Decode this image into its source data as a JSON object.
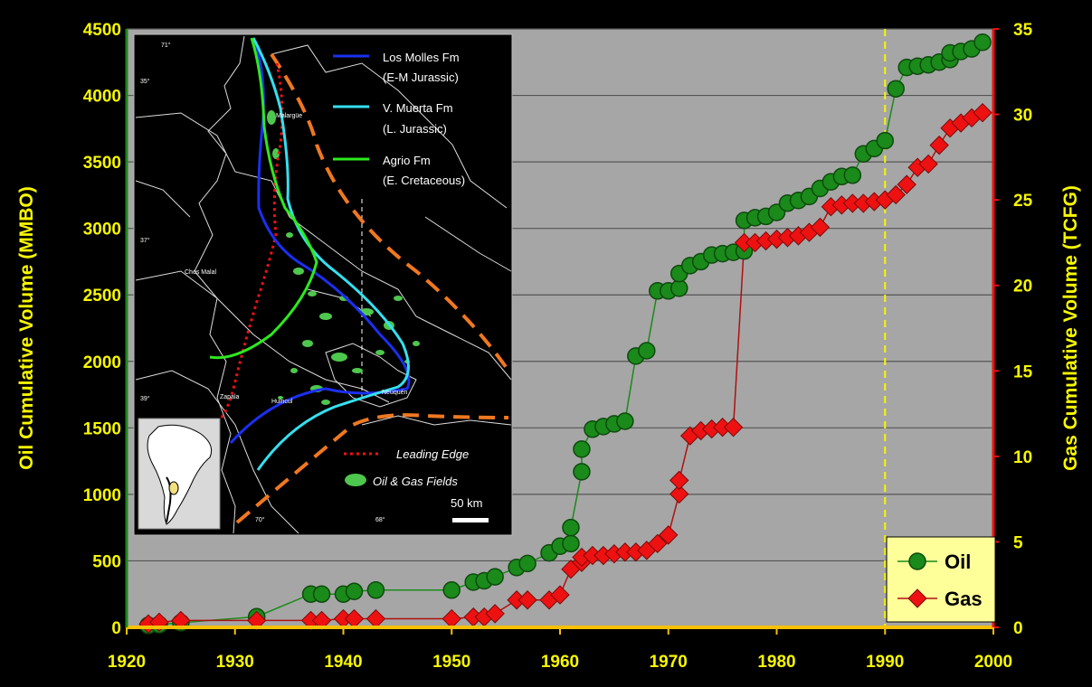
{
  "chart_data": {
    "type": "scatter",
    "title": "",
    "xlabel": "",
    "y_left_label": "Oil Cumulative Volume (MMBO)",
    "y_right_label": "Gas Cumulative Volume (TCFG)",
    "xlim": [
      1920,
      2000
    ],
    "ylim_left": [
      0,
      4500
    ],
    "ylim_right": [
      0,
      35
    ],
    "x_ticks": [
      "1920",
      "1930",
      "1940",
      "1950",
      "1960",
      "1970",
      "1980",
      "1990",
      "2000"
    ],
    "y_left_ticks": [
      "0",
      "500",
      "1000",
      "1500",
      "2000",
      "2500",
      "3000",
      "3500",
      "4000",
      "4500"
    ],
    "y_right_ticks": [
      "0",
      "5",
      "10",
      "15",
      "20",
      "25",
      "30",
      "35"
    ],
    "vertical_marker_x": 1990,
    "legend_position": "bottom-right",
    "series": [
      {
        "name": "Oil",
        "axis": "left",
        "color": "#1a8a1a",
        "marker": "circle",
        "points": [
          [
            1922,
            15
          ],
          [
            1923,
            20
          ],
          [
            1925,
            35
          ],
          [
            1932,
            80
          ],
          [
            1937,
            250
          ],
          [
            1938,
            250
          ],
          [
            1940,
            250
          ],
          [
            1941,
            270
          ],
          [
            1943,
            280
          ],
          [
            1950,
            280
          ],
          [
            1952,
            340
          ],
          [
            1953,
            350
          ],
          [
            1954,
            380
          ],
          [
            1956,
            450
          ],
          [
            1957,
            480
          ],
          [
            1959,
            560
          ],
          [
            1960,
            610
          ],
          [
            1961,
            630
          ],
          [
            1961,
            750
          ],
          [
            1962,
            1170
          ],
          [
            1962,
            1340
          ],
          [
            1963,
            1490
          ],
          [
            1964,
            1510
          ],
          [
            1965,
            1530
          ],
          [
            1966,
            1550
          ],
          [
            1967,
            2040
          ],
          [
            1968,
            2080
          ],
          [
            1969,
            2530
          ],
          [
            1970,
            2530
          ],
          [
            1971,
            2550
          ],
          [
            1971,
            2660
          ],
          [
            1972,
            2720
          ],
          [
            1973,
            2750
          ],
          [
            1974,
            2800
          ],
          [
            1975,
            2810
          ],
          [
            1976,
            2820
          ],
          [
            1977,
            2830
          ],
          [
            1977,
            3060
          ],
          [
            1978,
            3080
          ],
          [
            1979,
            3090
          ],
          [
            1980,
            3120
          ],
          [
            1981,
            3190
          ],
          [
            1982,
            3210
          ],
          [
            1983,
            3240
          ],
          [
            1984,
            3300
          ],
          [
            1985,
            3350
          ],
          [
            1986,
            3390
          ],
          [
            1987,
            3400
          ],
          [
            1988,
            3560
          ],
          [
            1989,
            3600
          ],
          [
            1990,
            3660
          ],
          [
            1991,
            4050
          ],
          [
            1992,
            4210
          ],
          [
            1993,
            4220
          ],
          [
            1994,
            4230
          ],
          [
            1995,
            4250
          ],
          [
            1996,
            4270
          ],
          [
            1996,
            4320
          ],
          [
            1997,
            4330
          ],
          [
            1998,
            4350
          ],
          [
            1999,
            4400
          ]
        ]
      },
      {
        "name": "Gas",
        "axis": "right",
        "color": "#ee1111",
        "marker": "diamond",
        "points": [
          [
            1922,
            0.2
          ],
          [
            1923,
            0.3
          ],
          [
            1925,
            0.4
          ],
          [
            1932,
            0.4
          ],
          [
            1937,
            0.4
          ],
          [
            1938,
            0.4
          ],
          [
            1940,
            0.5
          ],
          [
            1941,
            0.5
          ],
          [
            1943,
            0.5
          ],
          [
            1950,
            0.5
          ],
          [
            1952,
            0.6
          ],
          [
            1953,
            0.6
          ],
          [
            1954,
            0.8
          ],
          [
            1956,
            1.6
          ],
          [
            1957,
            1.6
          ],
          [
            1959,
            1.6
          ],
          [
            1960,
            1.9
          ],
          [
            1961,
            3.4
          ],
          [
            1962,
            3.8
          ],
          [
            1962,
            4.1
          ],
          [
            1963,
            4.2
          ],
          [
            1964,
            4.2
          ],
          [
            1965,
            4.3
          ],
          [
            1966,
            4.4
          ],
          [
            1967,
            4.4
          ],
          [
            1968,
            4.5
          ],
          [
            1969,
            4.9
          ],
          [
            1970,
            5.4
          ],
          [
            1971,
            7.8
          ],
          [
            1971,
            8.6
          ],
          [
            1972,
            11.2
          ],
          [
            1973,
            11.5
          ],
          [
            1974,
            11.6
          ],
          [
            1975,
            11.7
          ],
          [
            1976,
            11.7
          ],
          [
            1977,
            22.5
          ],
          [
            1978,
            22.5
          ],
          [
            1979,
            22.6
          ],
          [
            1980,
            22.7
          ],
          [
            1981,
            22.8
          ],
          [
            1982,
            22.9
          ],
          [
            1983,
            23.1
          ],
          [
            1984,
            23.4
          ],
          [
            1985,
            24.6
          ],
          [
            1986,
            24.7
          ],
          [
            1987,
            24.8
          ],
          [
            1988,
            24.8
          ],
          [
            1989,
            24.9
          ],
          [
            1990,
            25.0
          ],
          [
            1991,
            25.3
          ],
          [
            1992,
            25.9
          ],
          [
            1993,
            26.9
          ],
          [
            1994,
            27.1
          ],
          [
            1995,
            28.2
          ],
          [
            1996,
            29.2
          ],
          [
            1997,
            29.5
          ],
          [
            1998,
            29.8
          ],
          [
            1999,
            30.1
          ]
        ]
      }
    ]
  },
  "inset_map": {
    "legend": [
      {
        "line1": "Los Molles Fm",
        "line2": "(E-M Jurassic)",
        "color": "#1b2ff0"
      },
      {
        "line1": "V. Muerta Fm",
        "line2": "(L. Jurassic)",
        "color": "#35e0f0"
      },
      {
        "line1": "Agrio Fm",
        "line2": "(E. Cretaceous)",
        "color": "#2ee81e"
      }
    ],
    "leading_edge_label": "Leading Edge",
    "fields_label": "Oil & Gas Fields",
    "scale_label": "50 km",
    "place_labels": [
      "Malargüe",
      "Chos Malal",
      "Zapala",
      "Huincul",
      "Neuquén"
    ],
    "coord_labels": [
      "71°",
      "35°",
      "37°",
      "39°",
      "70°",
      "68°"
    ]
  },
  "colors": {
    "background": "#000000",
    "plot_area": "#a6a6a6",
    "axis_text": "#f7f700",
    "oil": "#1a8a1a",
    "gas": "#ee1111",
    "legend_bg": "#ffff99"
  }
}
